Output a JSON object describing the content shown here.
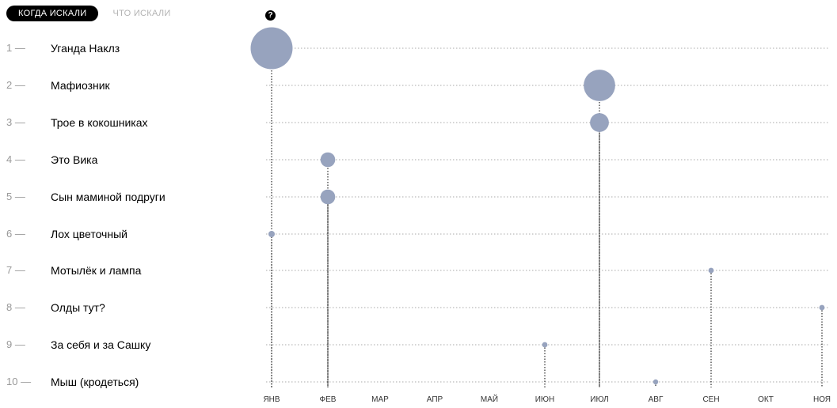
{
  "tabs": [
    {
      "label": "КОГДА ИСКАЛИ",
      "active": true
    },
    {
      "label": "ЧТО ИСКАЛИ",
      "active": false
    }
  ],
  "help_icon": "question-circle-icon",
  "chart_data": {
    "type": "scatter",
    "title": "",
    "xlabel": "",
    "ylabel": "",
    "categories_x": [
      "ЯНВ",
      "ФЕВ",
      "МАР",
      "АПР",
      "МАЙ",
      "ИЮН",
      "ИЮЛ",
      "АВГ",
      "СЕН",
      "ОКТ",
      "НОЯ"
    ],
    "rows": [
      {
        "rank": "1 —",
        "title": "Уганда Наклз",
        "month": "ЯНВ",
        "size": 10
      },
      {
        "rank": "2 —",
        "title": "Мафиозник",
        "month": "ИЮЛ",
        "size": 7.5
      },
      {
        "rank": "3 —",
        "title": "Трое в кокошниках",
        "month": "ИЮЛ",
        "size": 4.5
      },
      {
        "rank": "4 —",
        "title": "Это Вика",
        "month": "ФЕВ",
        "size": 3.5
      },
      {
        "rank": "5 —",
        "title": "Сын маминой подруги",
        "month": "ФЕВ",
        "size": 3.5
      },
      {
        "rank": "6 —",
        "title": "Лох цветочный",
        "month": "ЯНВ",
        "size": 1.5
      },
      {
        "rank": "7 —",
        "title": "Мотылёк и лампа",
        "month": "СЕН",
        "size": 1.3
      },
      {
        "rank": "8 —",
        "title": "Олды тут?",
        "month": "НОЯ",
        "size": 1.3
      },
      {
        "rank": "9 —",
        "title": "За себя и за Сашку",
        "month": "ИЮН",
        "size": 1.3
      },
      {
        "rank": "10 —",
        "title": "Мыш (кродеться)",
        "month": "АВГ",
        "size": 1.2
      }
    ],
    "colors": {
      "bubble": "#97a3be",
      "grid": "#aaaaaa",
      "stem": "#000000"
    },
    "grid": true
  }
}
